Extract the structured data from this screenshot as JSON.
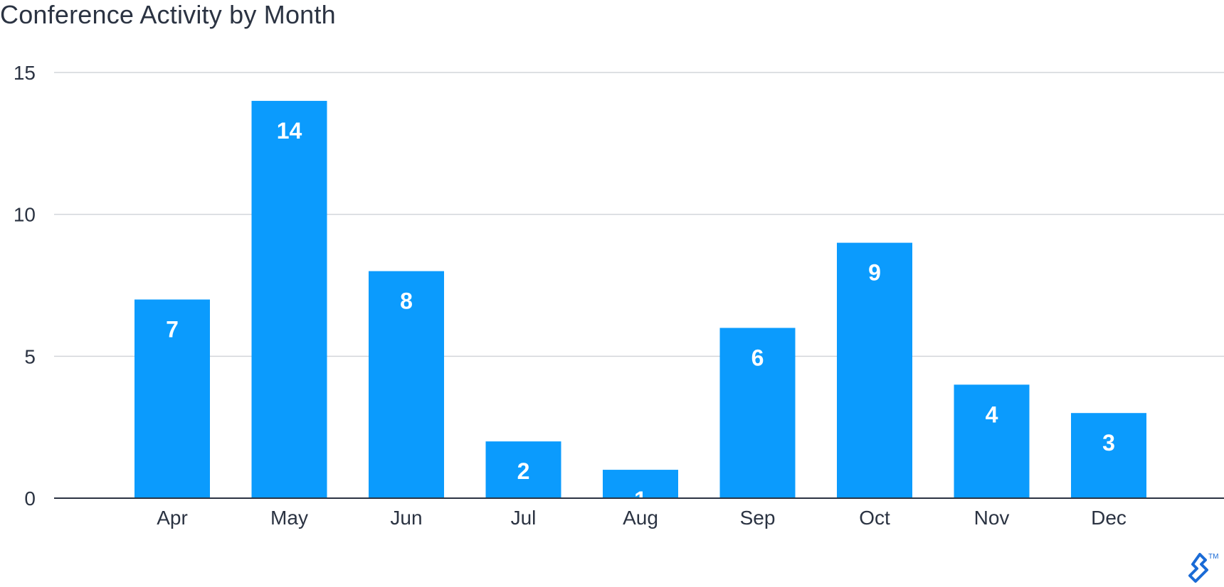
{
  "chart_data": {
    "type": "bar",
    "title": "Conference Activity by Month",
    "xlabel": "",
    "ylabel": "",
    "categories": [
      "Apr",
      "May",
      "Jun",
      "Jul",
      "Aug",
      "Sep",
      "Oct",
      "Nov",
      "Dec"
    ],
    "values": [
      7,
      14,
      8,
      2,
      1,
      6,
      9,
      4,
      3
    ],
    "ylim": [
      0,
      15
    ],
    "yticks": [
      0,
      5,
      10,
      15
    ],
    "grid": true,
    "legend": "none",
    "data_labels": "inside-top",
    "bar_color": "#0b9bfd",
    "label_color": "#ffffff",
    "text_color": "#2b3342",
    "grid_color": "#d2d5da"
  },
  "branding": {
    "logo_icon": "toptal-logo-icon",
    "trademark": "TM",
    "logo_color": "#1a6bd6"
  }
}
